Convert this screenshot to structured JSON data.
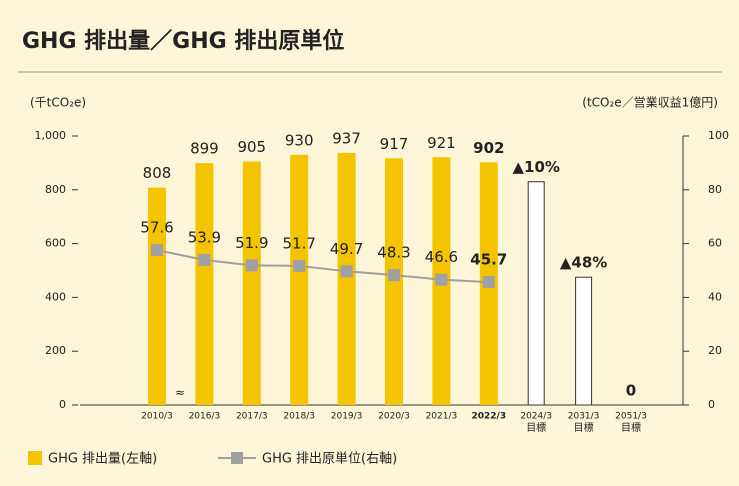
{
  "chart_data": {
    "type": "bar",
    "title": "GHG 排出量／GHG 排出原単位",
    "y_label": "(千tCO₂e)",
    "y2_label": "(tCO₂e／営業収益1億円)",
    "categories": [
      "2010/3",
      "2016/3",
      "2017/3",
      "2018/3",
      "2019/3",
      "2020/3",
      "2021/3",
      "2022/3",
      "2024/3",
      "2031/3",
      "2051/3"
    ],
    "target_label": "目標",
    "series": [
      {
        "name": "GHG 排出量(左軸)",
        "color": "#f5c400",
        "type": "bar",
        "values": [
          808,
          899,
          905,
          930,
          937,
          917,
          921,
          902,
          null,
          null,
          null
        ]
      },
      {
        "name": "GHG 排出原単位(右軸)",
        "color": "#a0a0a0",
        "type": "line",
        "axis": "y2",
        "values": [
          57.6,
          53.9,
          51.9,
          51.7,
          49.7,
          48.3,
          46.6,
          45.7,
          null,
          null,
          null
        ]
      }
    ],
    "targets": {
      "color": "#ffffff",
      "values": [
        null,
        null,
        null,
        null,
        null,
        null,
        null,
        null,
        830,
        475,
        0
      ],
      "value_labels": [
        null,
        null,
        null,
        null,
        null,
        null,
        null,
        null,
        "▲10%",
        "▲48%",
        "0"
      ]
    },
    "ylim": [
      0,
      1000
    ],
    "yticks": [
      0,
      200,
      400,
      600,
      800,
      {
        "value": 1000,
        "label": "1,000"
      }
    ],
    "y2lim": [
      0,
      100
    ],
    "y2ticks": [
      0,
      20,
      40,
      60,
      80,
      100
    ]
  }
}
